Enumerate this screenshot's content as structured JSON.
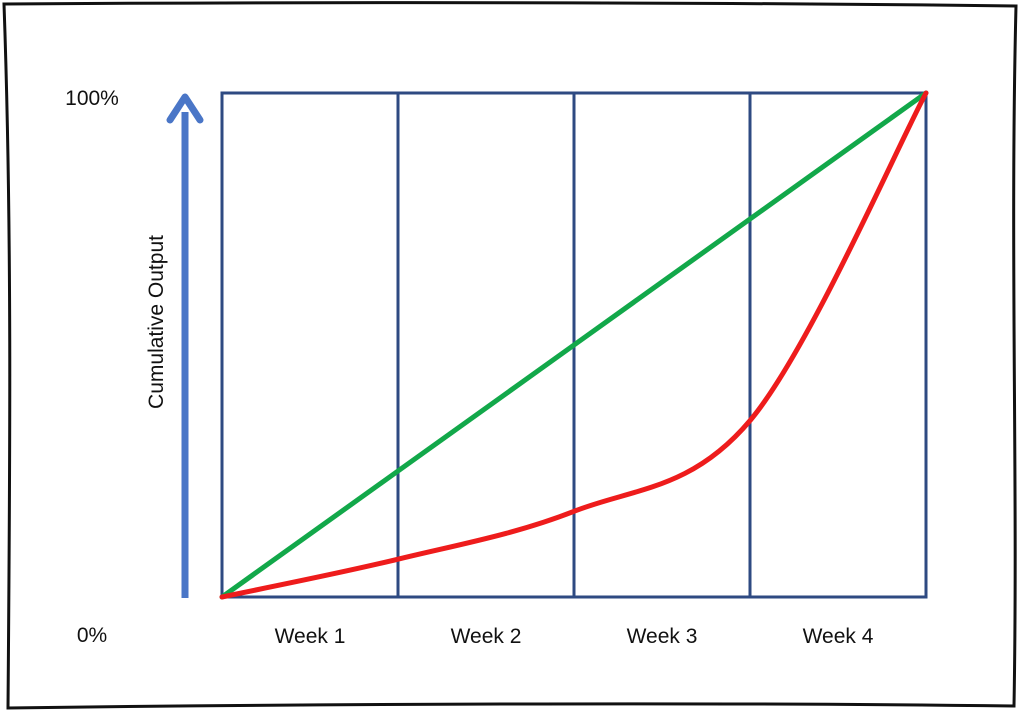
{
  "chart_data": {
    "type": "line",
    "ylabel": "Cumulative Output",
    "y_tick_labels": {
      "top": "100%",
      "bottom": "0%"
    },
    "categories": [
      "Week 1",
      "Week 2",
      "Week 3",
      "Week 4"
    ],
    "x": [
      0,
      1,
      2,
      3,
      4
    ],
    "xlim": [
      0,
      4
    ],
    "ylim": [
      0,
      100
    ],
    "grid": true,
    "series": [
      {
        "color": "#12a84a",
        "values": [
          0,
          25,
          50,
          75,
          100
        ]
      },
      {
        "color": "#ee1c1c",
        "values": [
          0,
          7.5,
          17,
          35,
          100
        ]
      }
    ],
    "axis_arrow_color": "#4a76c7",
    "plot_border_color": "#2e4a82"
  }
}
